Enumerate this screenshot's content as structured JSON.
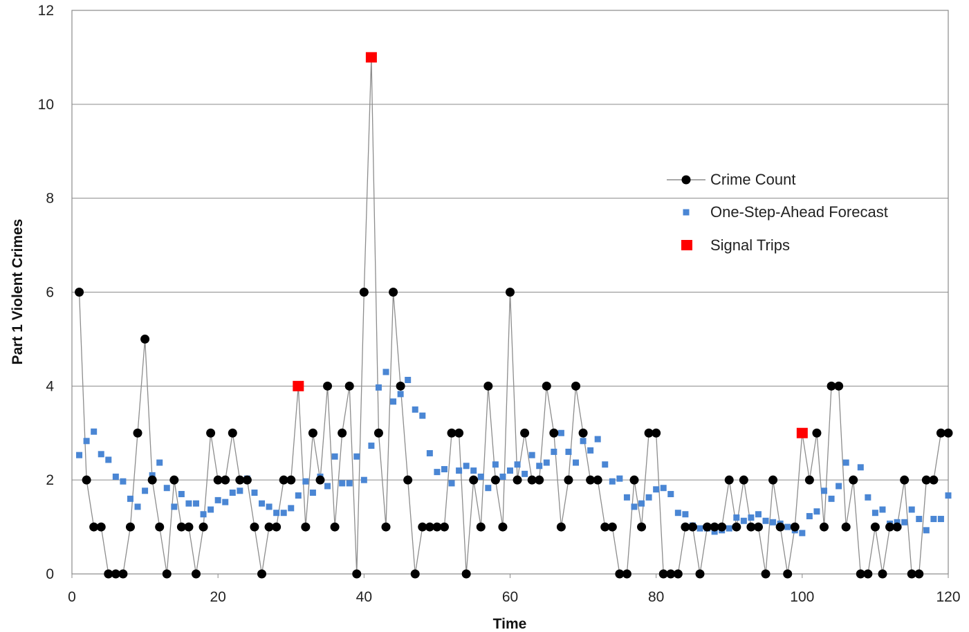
{
  "chart_data": {
    "type": "line",
    "xlabel": "Time",
    "ylabel": "Part 1 Violent  Crimes",
    "xlim": [
      0,
      120
    ],
    "ylim": [
      0,
      12
    ],
    "xticks": [
      "0",
      "20",
      "40",
      "60",
      "80",
      "100",
      "120"
    ],
    "yticks": [
      "0",
      "2",
      "4",
      "6",
      "8",
      "10",
      "12"
    ],
    "grid": "horizontal",
    "legend_position": "right",
    "series": [
      {
        "name": "Crime Count",
        "style": "line-marker",
        "color": "#000000",
        "line_color": "#8c8c8c",
        "x": [
          1,
          2,
          3,
          4,
          5,
          6,
          7,
          8,
          9,
          10,
          11,
          12,
          13,
          14,
          15,
          16,
          17,
          18,
          19,
          20,
          21,
          22,
          23,
          24,
          25,
          26,
          27,
          28,
          29,
          30,
          31,
          32,
          33,
          34,
          35,
          36,
          37,
          38,
          39,
          40,
          41,
          42,
          43,
          44,
          45,
          46,
          47,
          48,
          49,
          50,
          51,
          52,
          53,
          54,
          55,
          56,
          57,
          58,
          59,
          60,
          61,
          62,
          63,
          64,
          65,
          66,
          67,
          68,
          69,
          70,
          71,
          72,
          73,
          74,
          75,
          76,
          77,
          78,
          79,
          80,
          81,
          82,
          83,
          84,
          85,
          86,
          87,
          88,
          89,
          90,
          91,
          92,
          93,
          94,
          95,
          96,
          97,
          98,
          99,
          100,
          101,
          102,
          103,
          104,
          105,
          106,
          107,
          108,
          109,
          110,
          111,
          112,
          113,
          114,
          115,
          116,
          117,
          118,
          119,
          120
        ],
        "y": [
          6,
          2,
          1,
          1,
          0,
          0,
          0,
          1,
          3,
          5,
          2,
          1,
          0,
          2,
          1,
          1,
          0,
          1,
          3,
          2,
          2,
          3,
          2,
          2,
          1,
          0,
          1,
          1,
          2,
          2,
          4,
          1,
          3,
          2,
          4,
          1,
          3,
          4,
          0,
          6,
          11,
          3,
          1,
          6,
          4,
          2,
          0,
          1,
          1,
          1,
          1,
          3,
          3,
          0,
          2,
          1,
          4,
          2,
          1,
          6,
          2,
          3,
          2,
          2,
          4,
          3,
          1,
          2,
          4,
          3,
          2,
          2,
          1,
          1,
          0,
          0,
          2,
          1,
          3,
          3,
          0,
          0,
          0,
          1,
          1,
          0,
          1,
          1,
          1,
          2,
          1,
          2,
          1,
          1,
          0,
          2,
          1,
          0,
          1,
          3,
          2,
          3,
          1,
          4,
          4,
          1,
          2,
          0,
          0,
          1,
          0,
          1,
          1,
          2,
          0,
          0,
          2,
          2,
          3,
          3
        ]
      },
      {
        "name": "One-Step-Ahead Forecast",
        "style": "square-marker",
        "color": "#4a86d4",
        "x": [
          1,
          2,
          3,
          4,
          5,
          6,
          7,
          8,
          9,
          10,
          11,
          12,
          13,
          14,
          15,
          16,
          17,
          18,
          19,
          20,
          21,
          22,
          23,
          24,
          25,
          26,
          27,
          28,
          29,
          30,
          31,
          32,
          33,
          34,
          35,
          36,
          37,
          38,
          39,
          40,
          41,
          42,
          43,
          44,
          45,
          46,
          47,
          48,
          49,
          50,
          51,
          52,
          53,
          54,
          55,
          56,
          57,
          58,
          59,
          60,
          61,
          62,
          63,
          64,
          65,
          66,
          67,
          68,
          69,
          70,
          71,
          72,
          73,
          74,
          75,
          76,
          77,
          78,
          79,
          80,
          81,
          82,
          83,
          84,
          85,
          86,
          87,
          88,
          89,
          90,
          91,
          92,
          93,
          94,
          95,
          96,
          97,
          98,
          99,
          100,
          101,
          102,
          103,
          104,
          105,
          106,
          107,
          108,
          109,
          110,
          111,
          112,
          113,
          114,
          115,
          116,
          117,
          118,
          119,
          120
        ],
        "y": [
          2.53,
          2.83,
          3.03,
          2.55,
          2.43,
          2.07,
          1.97,
          1.6,
          1.43,
          1.77,
          2.1,
          2.37,
          1.83,
          1.43,
          1.7,
          1.5,
          1.5,
          1.27,
          1.37,
          1.57,
          1.53,
          1.73,
          1.77,
          2.03,
          1.73,
          1.5,
          1.43,
          1.3,
          1.3,
          1.4,
          1.67,
          1.97,
          1.73,
          2.07,
          1.87,
          2.5,
          1.93,
          1.93,
          2.5,
          2.0,
          2.73,
          3.97,
          4.3,
          3.67,
          3.83,
          4.13,
          3.5,
          3.37,
          2.57,
          2.17,
          2.23,
          1.93,
          2.2,
          2.3,
          2.2,
          2.07,
          1.83,
          2.33,
          2.07,
          2.2,
          2.33,
          2.13,
          2.53,
          2.3,
          2.37,
          2.6,
          3.0,
          2.6,
          2.37,
          2.83,
          2.63,
          2.87,
          2.33,
          1.97,
          2.03,
          1.63,
          1.43,
          1.5,
          1.63,
          1.8,
          1.83,
          1.7,
          1.3,
          1.27,
          1.03,
          0.97,
          0.97,
          0.9,
          0.93,
          0.97,
          1.2,
          1.13,
          1.2,
          1.27,
          1.13,
          1.1,
          1.07,
          1.0,
          0.93,
          0.87,
          1.23,
          1.33,
          1.77,
          1.6,
          1.87,
          2.37,
          2.0,
          2.27,
          1.63,
          1.3,
          1.37,
          1.07,
          1.1,
          1.1,
          1.37,
          1.17,
          0.93,
          1.17,
          1.17,
          1.67
        ]
      },
      {
        "name": "Signal Trips",
        "style": "big-square-marker",
        "color": "#ff0000",
        "x": [
          31,
          41,
          100
        ],
        "y": [
          4,
          11,
          3
        ]
      }
    ]
  }
}
